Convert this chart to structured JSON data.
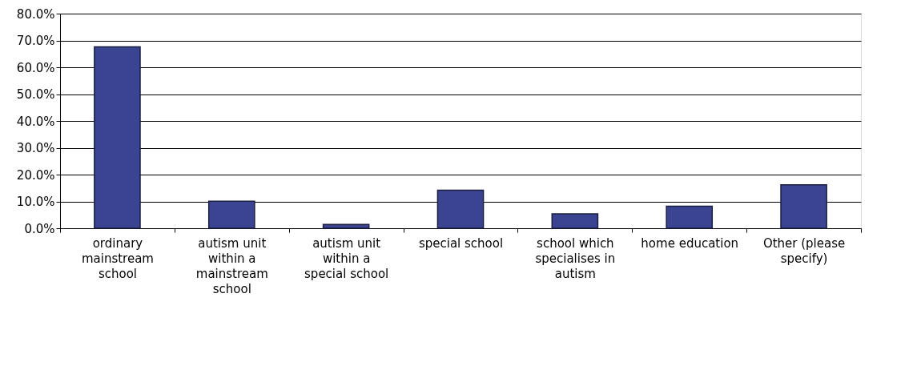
{
  "chart_data": {
    "type": "bar",
    "categories": [
      "ordinary mainstream school",
      "autism unit within a mainstream school",
      "autism unit within a special school",
      "special school",
      "school which specialises in autism",
      "home education",
      "Other (please specify)"
    ],
    "values": [
      67.6,
      10.1,
      1.4,
      14.2,
      5.4,
      8.2,
      16.2
    ],
    "color": "#3a4491",
    "ylim": [
      0,
      80
    ],
    "yticks": [
      {
        "value": 0,
        "label": "0.0%"
      },
      {
        "value": 10,
        "label": "10.0%"
      },
      {
        "value": 20,
        "label": "20.0%"
      },
      {
        "value": 30,
        "label": "30.0%"
      },
      {
        "value": 40,
        "label": "40.0%"
      },
      {
        "value": 50,
        "label": "50.0%"
      },
      {
        "value": 60,
        "label": "60.0%"
      },
      {
        "value": 70,
        "label": "70.0%"
      },
      {
        "value": 80,
        "label": "80.0%"
      }
    ],
    "grid": "y"
  }
}
